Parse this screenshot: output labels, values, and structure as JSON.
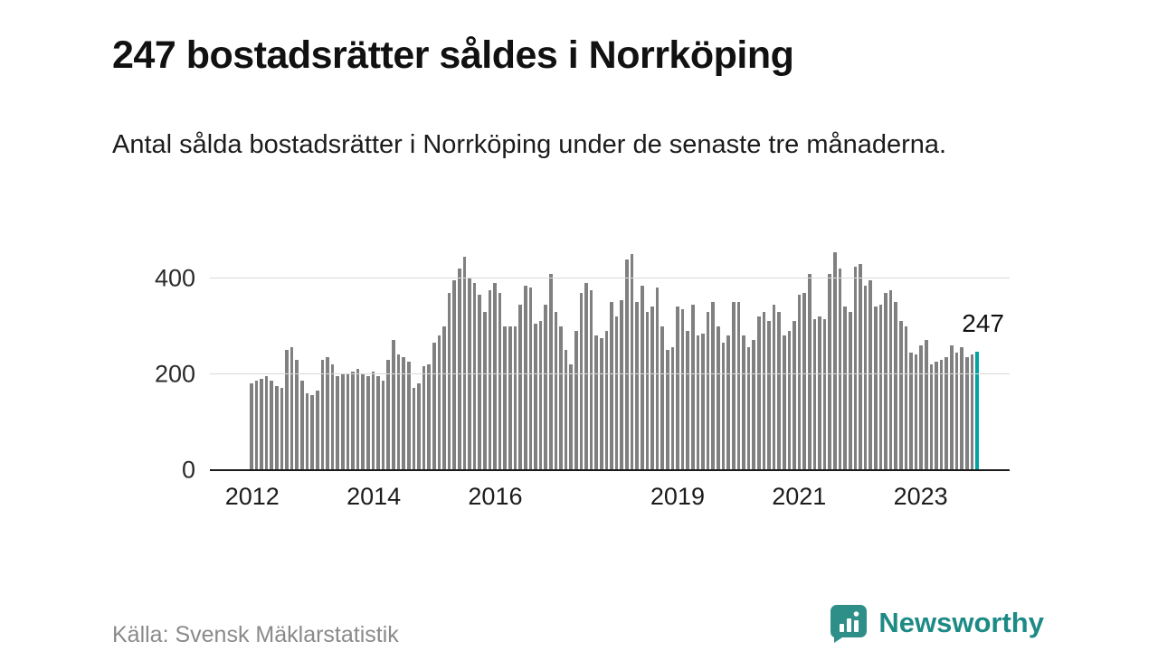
{
  "header": {
    "title": "247 bostadsrätter såldes i Norrköping",
    "subtitle": "Antal sålda bostadsrätter i Norrköping under de senaste tre månaderna."
  },
  "chart_data": {
    "type": "bar",
    "title": "Antal sålda bostadsrätter i Norrköping under de senaste tre månaderna",
    "frequency": "monthly",
    "x_start": "2012-01",
    "values": [
      180,
      185,
      190,
      195,
      185,
      175,
      170,
      250,
      255,
      230,
      185,
      160,
      155,
      165,
      230,
      235,
      220,
      195,
      200,
      200,
      205,
      210,
      200,
      195,
      205,
      195,
      185,
      230,
      270,
      240,
      235,
      225,
      170,
      180,
      215,
      220,
      265,
      280,
      300,
      370,
      395,
      420,
      445,
      400,
      390,
      365,
      330,
      375,
      390,
      370,
      300,
      300,
      300,
      345,
      385,
      380,
      305,
      310,
      345,
      410,
      330,
      300,
      250,
      220,
      290,
      370,
      390,
      375,
      280,
      275,
      290,
      350,
      320,
      355,
      440,
      450,
      350,
      385,
      330,
      340,
      380,
      300,
      250,
      255,
      340,
      335,
      290,
      345,
      280,
      285,
      330,
      350,
      300,
      265,
      280,
      350,
      350,
      280,
      255,
      270,
      320,
      330,
      310,
      345,
      330,
      280,
      290,
      310,
      365,
      370,
      410,
      315,
      320,
      315,
      410,
      455,
      420,
      340,
      330,
      425,
      430,
      385,
      395,
      340,
      345,
      370,
      375,
      350,
      310,
      300,
      245,
      240,
      260,
      270,
      220,
      225,
      230,
      235,
      260,
      245,
      255,
      235,
      240,
      247
    ],
    "highlight_last_value": 247,
    "annotation": "247",
    "xlabel": "",
    "ylabel": "",
    "ylim": [
      0,
      500
    ],
    "yticks": [
      0,
      200,
      400
    ],
    "xticks": [
      2012,
      2014,
      2016,
      2019,
      2021,
      2023
    ],
    "bar_color": "#808080",
    "highlight_color": "#00a3a3",
    "grid": true,
    "legend": "none"
  },
  "footer": {
    "source": "Källa: Svensk Mäklarstatistik",
    "brand": "Newsworthy",
    "brand_color": "#1d8a86",
    "icon": "newsworthy-chart-bubble-icon"
  }
}
